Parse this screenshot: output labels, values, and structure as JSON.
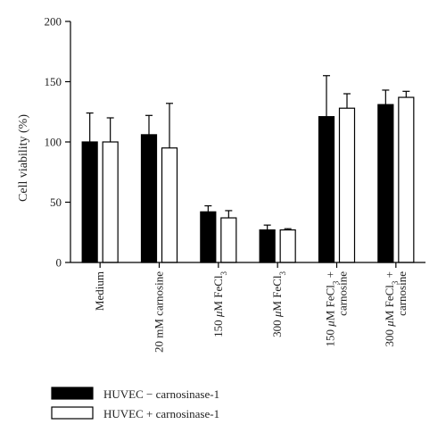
{
  "chart_data": {
    "type": "bar",
    "title": "",
    "xlabel": "",
    "ylabel": "Cell viability (%)",
    "ylim": [
      0,
      200
    ],
    "yticks": [
      "0",
      "50",
      "100",
      "150",
      "200"
    ],
    "grid": false,
    "legend_position": "bottom-left",
    "categories": [
      {
        "lines": [
          [
            {
              "t": "Medium"
            }
          ]
        ]
      },
      {
        "lines": [
          [
            {
              "t": "20 mM carnosine"
            }
          ]
        ]
      },
      {
        "lines": [
          [
            {
              "t": "150 "
            },
            {
              "t": "μ",
              "i": true
            },
            {
              "t": "M FeCl"
            },
            {
              "t": "3",
              "sub": true
            }
          ]
        ]
      },
      {
        "lines": [
          [
            {
              "t": "300 "
            },
            {
              "t": "μ",
              "i": true
            },
            {
              "t": "M FeCl"
            },
            {
              "t": "3",
              "sub": true
            }
          ]
        ]
      },
      {
        "lines": [
          [
            {
              "t": "150 "
            },
            {
              "t": "μ",
              "i": true
            },
            {
              "t": "M FeCl"
            },
            {
              "t": "3",
              "sub": true
            },
            {
              "t": " +"
            }
          ],
          [
            {
              "t": "carnosine"
            }
          ]
        ]
      },
      {
        "lines": [
          [
            {
              "t": "300 "
            },
            {
              "t": "μ",
              "i": true
            },
            {
              "t": "M FeCl"
            },
            {
              "t": "3",
              "sub": true
            },
            {
              "t": " +"
            }
          ],
          [
            {
              "t": "carnosine"
            }
          ]
        ]
      }
    ],
    "series": [
      {
        "name": "HUVEC − carnosinase-1",
        "color": "#000000",
        "values": [
          100,
          106,
          42,
          27,
          121,
          131
        ],
        "errors": [
          24,
          16,
          5,
          4,
          34,
          12
        ]
      },
      {
        "name": "HUVEC + carnosinase-1",
        "color": "#ffffff",
        "values": [
          100,
          95,
          37,
          27,
          128,
          137
        ],
        "errors": [
          20,
          37,
          6,
          1,
          12,
          5
        ]
      }
    ]
  }
}
